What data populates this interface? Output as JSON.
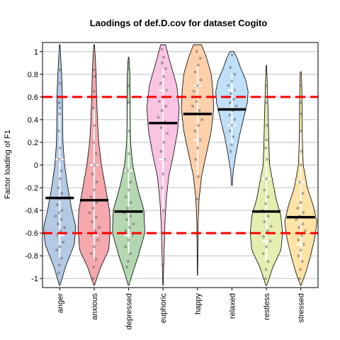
{
  "chart_data": {
    "type": "violin",
    "title": "Laodings of def.D.cov for dataset Cogito",
    "xlabel": "",
    "ylabel": "Factor loading of F1",
    "ylim": [
      -1.08,
      1.08
    ],
    "yticks": [
      -1,
      -0.8,
      -0.6,
      -0.4,
      -0.2,
      0,
      0.2,
      0.4,
      0.6,
      0.8,
      1
    ],
    "ytick_labels": [
      "-1",
      "-0.8",
      "-0.6",
      "-0.4",
      "-0.2",
      "0",
      "0.2",
      "0.4",
      "0.6",
      "0.8",
      "1"
    ],
    "grid": true,
    "reference_lines": [
      0.6,
      -0.6
    ],
    "reference_line_color": "#ff0000",
    "categories": [
      "anger",
      "anxious",
      "depressed",
      "euphoric",
      "happy",
      "relaxed",
      "restless",
      "stressed"
    ],
    "colors": [
      "#b3c9e4",
      "#f5a8ae",
      "#b4d7b2",
      "#f8c4e1",
      "#fcd0aa",
      "#bfe0f8",
      "#e4eeb1",
      "#fde3a6"
    ],
    "means": [
      -0.29,
      -0.31,
      -0.41,
      0.37,
      0.45,
      0.49,
      -0.41,
      -0.46
    ],
    "min": [
      -1.06,
      -1.06,
      -1.06,
      -1.06,
      -0.97,
      -0.18,
      -1.06,
      -1.06
    ],
    "max": [
      1.06,
      1.06,
      0.95,
      1.06,
      1.06,
      1.0,
      0.88,
      0.82
    ],
    "density_profiles": [
      [
        [
          -1.06,
          0.02
        ],
        [
          -0.9,
          0.35
        ],
        [
          -0.7,
          0.9
        ],
        [
          -0.55,
          1.0
        ],
        [
          -0.4,
          0.75
        ],
        [
          -0.2,
          0.5
        ],
        [
          0,
          0.3
        ],
        [
          0.2,
          0.2
        ],
        [
          0.4,
          0.18
        ],
        [
          0.6,
          0.17
        ],
        [
          0.8,
          0.12
        ],
        [
          0.95,
          0.06
        ],
        [
          1.06,
          0.02
        ]
      ],
      [
        [
          -1.06,
          0.02
        ],
        [
          -0.9,
          0.4
        ],
        [
          -0.75,
          0.9
        ],
        [
          -0.55,
          1.0
        ],
        [
          -0.4,
          0.95
        ],
        [
          -0.2,
          0.7
        ],
        [
          0,
          0.45
        ],
        [
          0.2,
          0.28
        ],
        [
          0.4,
          0.2
        ],
        [
          0.6,
          0.15
        ],
        [
          0.8,
          0.12
        ],
        [
          0.95,
          0.07
        ],
        [
          1.06,
          0.02
        ]
      ],
      [
        [
          -1.06,
          0.02
        ],
        [
          -0.95,
          0.25
        ],
        [
          -0.8,
          0.6
        ],
        [
          -0.6,
          1.0
        ],
        [
          -0.4,
          0.95
        ],
        [
          -0.2,
          0.55
        ],
        [
          0,
          0.25
        ],
        [
          0.2,
          0.12
        ],
        [
          0.4,
          0.1
        ],
        [
          0.6,
          0.1
        ],
        [
          0.8,
          0.08
        ],
        [
          0.95,
          0.02
        ]
      ],
      [
        [
          -1.06,
          0.01
        ],
        [
          -0.9,
          0.04
        ],
        [
          -0.7,
          0.08
        ],
        [
          -0.5,
          0.12
        ],
        [
          -0.3,
          0.2
        ],
        [
          -0.1,
          0.35
        ],
        [
          0.1,
          0.65
        ],
        [
          0.3,
          0.9
        ],
        [
          0.5,
          1.0
        ],
        [
          0.7,
          0.85
        ],
        [
          0.85,
          0.55
        ],
        [
          0.95,
          0.35
        ],
        [
          1.06,
          0.15
        ]
      ],
      [
        [
          -0.97,
          0.01
        ],
        [
          -0.8,
          0.02
        ],
        [
          -0.5,
          0.04
        ],
        [
          -0.3,
          0.1
        ],
        [
          -0.1,
          0.25
        ],
        [
          0.1,
          0.55
        ],
        [
          0.3,
          0.85
        ],
        [
          0.5,
          1.0
        ],
        [
          0.65,
          0.95
        ],
        [
          0.8,
          0.85
        ],
        [
          0.95,
          0.55
        ],
        [
          1.06,
          0.25
        ]
      ],
      [
        [
          -0.18,
          0.02
        ],
        [
          -0.05,
          0.08
        ],
        [
          0.1,
          0.25
        ],
        [
          0.25,
          0.45
        ],
        [
          0.4,
          0.7
        ],
        [
          0.55,
          0.95
        ],
        [
          0.65,
          1.0
        ],
        [
          0.75,
          0.85
        ],
        [
          0.85,
          0.55
        ],
        [
          0.95,
          0.3
        ],
        [
          1.0,
          0.12
        ]
      ],
      [
        [
          -1.06,
          0.03
        ],
        [
          -0.9,
          0.4
        ],
        [
          -0.75,
          0.9
        ],
        [
          -0.6,
          1.0
        ],
        [
          -0.45,
          0.9
        ],
        [
          -0.3,
          0.6
        ],
        [
          -0.15,
          0.4
        ],
        [
          0,
          0.2
        ],
        [
          0.2,
          0.15
        ],
        [
          0.4,
          0.12
        ],
        [
          0.6,
          0.08
        ],
        [
          0.75,
          0.05
        ],
        [
          0.88,
          0.01
        ]
      ],
      [
        [
          -1.06,
          0.02
        ],
        [
          -0.95,
          0.3
        ],
        [
          -0.8,
          0.6
        ],
        [
          -0.65,
          0.85
        ],
        [
          -0.5,
          1.0
        ],
        [
          -0.35,
          0.75
        ],
        [
          -0.2,
          0.4
        ],
        [
          0,
          0.15
        ],
        [
          0.2,
          0.1
        ],
        [
          0.4,
          0.08
        ],
        [
          0.6,
          0.07
        ],
        [
          0.8,
          0.04
        ]
      ]
    ],
    "points": [
      [
        -0.95,
        -0.88,
        -0.82,
        -0.75,
        -0.72,
        -0.68,
        -0.62,
        -0.58,
        -0.55,
        -0.52,
        -0.48,
        -0.45,
        -0.42,
        -0.4,
        -0.35,
        -0.3,
        -0.25,
        -0.2,
        -0.12,
        -0.05,
        0.05,
        0.15,
        0.3,
        0.45,
        0.5,
        0.55,
        0.72,
        0.84
      ],
      [
        -1.0,
        -0.9,
        -0.83,
        -0.78,
        -0.72,
        -0.66,
        -0.62,
        -0.58,
        -0.55,
        -0.5,
        -0.46,
        -0.42,
        -0.38,
        -0.33,
        -0.28,
        -0.22,
        -0.15,
        -0.08,
        0.0,
        0.1,
        0.2,
        0.35,
        0.5,
        0.65,
        0.78,
        0.84
      ],
      [
        -0.9,
        -0.85,
        -0.78,
        -0.72,
        -0.66,
        -0.62,
        -0.58,
        -0.55,
        -0.52,
        -0.48,
        -0.45,
        -0.42,
        -0.38,
        -0.33,
        -0.28,
        -0.22,
        -0.15,
        -0.05,
        0.1,
        0.3,
        0.55,
        0.7,
        0.85,
        0.9
      ],
      [
        -0.88,
        -0.6,
        -0.4,
        -0.2,
        -0.08,
        0.05,
        0.12,
        0.2,
        0.28,
        0.33,
        0.38,
        0.42,
        0.48,
        0.52,
        0.56,
        0.6,
        0.66,
        0.72,
        0.78,
        0.85,
        0.9,
        0.95,
        1.02
      ],
      [
        -0.62,
        -0.3,
        -0.1,
        0.05,
        0.15,
        0.22,
        0.3,
        0.35,
        0.4,
        0.45,
        0.48,
        0.52,
        0.56,
        0.6,
        0.65,
        0.7,
        0.75,
        0.82,
        0.88,
        0.94,
        1.0
      ],
      [
        0.12,
        0.18,
        0.25,
        0.3,
        0.35,
        0.4,
        0.44,
        0.48,
        0.52,
        0.55,
        0.58,
        0.6,
        0.63,
        0.66,
        0.7,
        0.74,
        0.8,
        0.86,
        0.97
      ],
      [
        -1.0,
        -0.92,
        -0.85,
        -0.78,
        -0.72,
        -0.67,
        -0.63,
        -0.58,
        -0.54,
        -0.5,
        -0.45,
        -0.4,
        -0.34,
        -0.28,
        -0.22,
        -0.12,
        0.05,
        0.15,
        0.22,
        0.35,
        0.55,
        0.7
      ],
      [
        -1.0,
        -0.92,
        -0.85,
        -0.8,
        -0.75,
        -0.7,
        -0.66,
        -0.62,
        -0.58,
        -0.55,
        -0.52,
        -0.48,
        -0.45,
        -0.42,
        -0.38,
        -0.33,
        -0.25,
        -0.15,
        0.0,
        0.12,
        0.3,
        0.45,
        0.55,
        0.7
      ]
    ]
  }
}
